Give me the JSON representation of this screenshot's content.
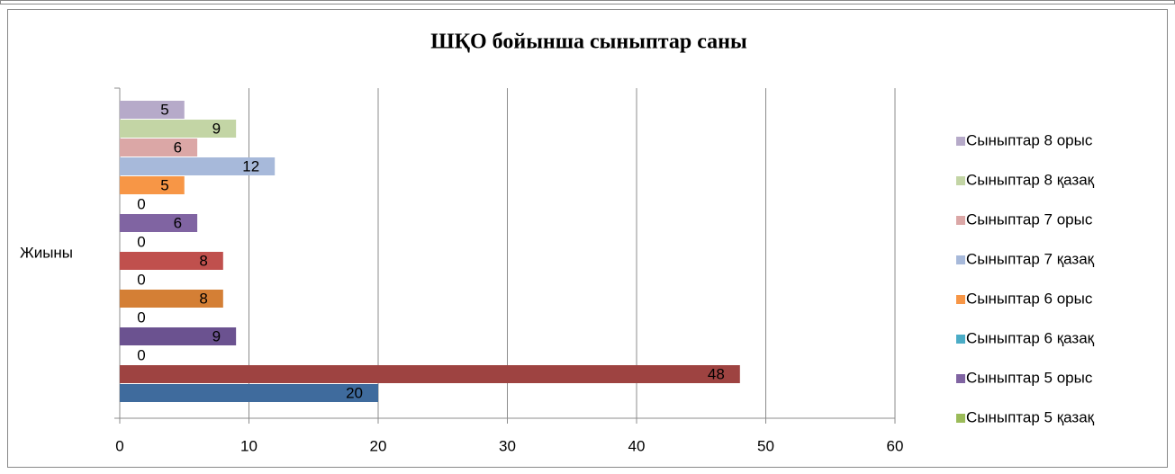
{
  "chart_data": {
    "type": "bar",
    "orientation": "horizontal",
    "title": "ШҚО бойынша сыныптар саны",
    "categories": [
      "Жиыны"
    ],
    "series": [
      {
        "name": null,
        "color": "#3f6b9d",
        "values": [
          20
        ]
      },
      {
        "name": null,
        "color": "#9e4341",
        "values": [
          48
        ]
      },
      {
        "name": null,
        "color": "#7e9a45",
        "values": [
          0
        ]
      },
      {
        "name": null,
        "color": "#6b5290",
        "values": [
          9
        ]
      },
      {
        "name": null,
        "color": "#3f98b0",
        "values": [
          0
        ]
      },
      {
        "name": null,
        "color": "#d47f35",
        "values": [
          8
        ]
      },
      {
        "name": null,
        "color": "#4f81bd",
        "values": [
          0
        ]
      },
      {
        "name": null,
        "color": "#c0504d",
        "values": [
          8
        ]
      },
      {
        "name": "Сыныптар 5 қазақ",
        "color": "#9bbb59",
        "values": [
          0
        ]
      },
      {
        "name": "Сыныптар 5 орыс",
        "color": "#8064a2",
        "values": [
          6
        ]
      },
      {
        "name": "Сыныптар 6 қазақ",
        "color": "#4bacc6",
        "values": [
          0
        ]
      },
      {
        "name": "Сыныптар 6 орыс",
        "color": "#f79646",
        "values": [
          5
        ]
      },
      {
        "name": "Сыныптар 7 қазақ",
        "color": "#a7b9da",
        "values": [
          12
        ]
      },
      {
        "name": "Сыныптар 7 орыс",
        "color": "#dba7a6",
        "values": [
          6
        ]
      },
      {
        "name": "Сыныптар 8 қазақ",
        "color": "#c3d5a5",
        "values": [
          9
        ]
      },
      {
        "name": "Сыныптар 8 орыс",
        "color": "#b6aac9",
        "values": [
          5
        ]
      }
    ],
    "xlim": [
      0,
      60
    ],
    "xticks": [
      0,
      10,
      20,
      30,
      40,
      50,
      60
    ],
    "grid": true,
    "legend": "right",
    "data_labels": true
  }
}
